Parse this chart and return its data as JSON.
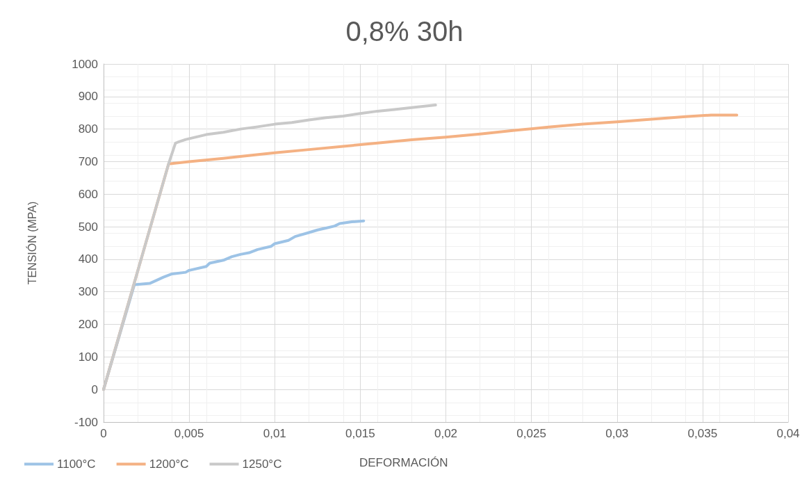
{
  "chart_data": {
    "type": "line",
    "title": "0,8% 30h",
    "xlabel": "DEFORMACIÓN",
    "ylabel": "TENSIÓN (MPA)",
    "xlim": [
      0,
      0.04
    ],
    "xticks": [
      0,
      {
        "value": 0.005,
        "label": "0,005"
      },
      {
        "value": 0.01,
        "label": "0,01"
      },
      {
        "value": 0.015,
        "label": "0,015"
      },
      {
        "value": 0.02,
        "label": "0,02"
      },
      {
        "value": 0.025,
        "label": "0,025"
      },
      {
        "value": 0.03,
        "label": "0,03"
      },
      {
        "value": 0.035,
        "label": "0,035"
      },
      {
        "value": 0.04,
        "label": "0,04"
      }
    ],
    "ylim": [
      -100,
      1000
    ],
    "yticks": [
      -100,
      0,
      100,
      200,
      300,
      400,
      500,
      600,
      700,
      800,
      900,
      1000
    ],
    "grid": true,
    "legend": "bottom left",
    "marker": "none",
    "line_style": "solid",
    "series": [
      {
        "name": "1100°C",
        "color": "#9dc3e6",
        "x": [
          0,
          0.0018,
          0.0027,
          0.0035,
          0.004,
          0.0048,
          0.005,
          0.006,
          0.0062,
          0.007,
          0.0075,
          0.008,
          0.0085,
          0.009,
          0.0098,
          0.01,
          0.0108,
          0.0112,
          0.012,
          0.0125,
          0.013,
          0.0135,
          0.0138,
          0.0145,
          0.0152
        ],
        "values": [
          0,
          322,
          326,
          345,
          355,
          360,
          366,
          378,
          388,
          397,
          408,
          415,
          420,
          430,
          440,
          448,
          458,
          470,
          482,
          490,
          496,
          502,
          510,
          515,
          518
        ]
      },
      {
        "name": "1200°C",
        "color": "#f4b183",
        "x": [
          0,
          0.0038,
          0.005,
          0.007,
          0.008,
          0.01,
          0.012,
          0.014,
          0.016,
          0.018,
          0.02,
          0.022,
          0.024,
          0.026,
          0.028,
          0.03,
          0.032,
          0.034,
          0.0355,
          0.037
        ],
        "values": [
          0,
          693,
          700,
          710,
          716,
          727,
          737,
          747,
          757,
          767,
          775,
          785,
          796,
          806,
          815,
          822,
          830,
          838,
          843,
          843
        ]
      },
      {
        "name": "1250°C",
        "color": "#c9c9c9",
        "x": [
          0,
          0.0038,
          0.0042,
          0.0048,
          0.006,
          0.007,
          0.008,
          0.009,
          0.01,
          0.011,
          0.012,
          0.013,
          0.014,
          0.015,
          0.016,
          0.017,
          0.018,
          0.0194
        ],
        "values": [
          0,
          693,
          757,
          768,
          783,
          790,
          800,
          807,
          815,
          820,
          828,
          835,
          840,
          848,
          855,
          860,
          866,
          874
        ]
      }
    ]
  }
}
